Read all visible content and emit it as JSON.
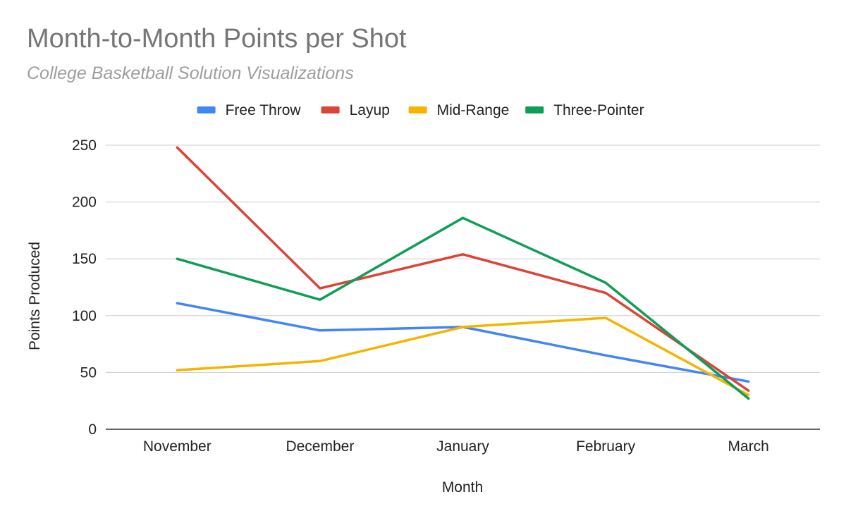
{
  "chart_data": {
    "type": "line",
    "title": "Month-to-Month Points per Shot",
    "subtitle": "College Basketball Solution Visualizations",
    "xlabel": "Month",
    "ylabel": "Points Produced",
    "categories": [
      "November",
      "December",
      "January",
      "February",
      "March"
    ],
    "ylim": [
      0,
      250
    ],
    "yticks": [
      0,
      50,
      100,
      150,
      200,
      250
    ],
    "grid": true,
    "legend_position": "top",
    "series": [
      {
        "name": "Free Throw",
        "color": "#4285f4",
        "values": [
          111,
          87,
          90,
          65,
          42
        ]
      },
      {
        "name": "Layup",
        "color": "#db4437",
        "values": [
          248,
          124,
          154,
          120,
          34
        ]
      },
      {
        "name": "Mid-Range",
        "color": "#f4b400",
        "values": [
          52,
          60,
          90,
          98,
          30
        ]
      },
      {
        "name": "Three-Pointer",
        "color": "#0f9d58",
        "values": [
          150,
          114,
          186,
          129,
          27
        ]
      }
    ]
  }
}
